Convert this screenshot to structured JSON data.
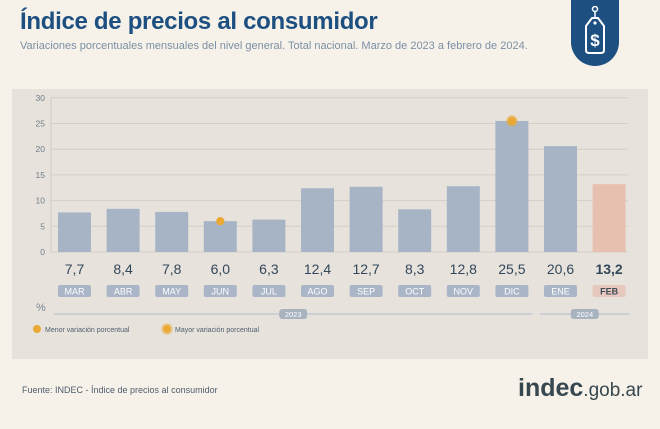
{
  "header": {
    "title": "Índice de precios al consumidor",
    "subtitle": "Variaciones porcentuales mensuales del nivel general. Total nacional. Marzo de 2023 a febrero de 2024.",
    "badge_icon": "price-tag-dollar-icon"
  },
  "chart_data": {
    "type": "bar",
    "categories": [
      "MAR",
      "ABR",
      "MAY",
      "JUN",
      "JUL",
      "AGO",
      "SEP",
      "OCT",
      "NOV",
      "DIC",
      "ENE",
      "FEB"
    ],
    "values": [
      7.7,
      8.4,
      7.8,
      6.0,
      6.3,
      12.4,
      12.7,
      8.3,
      12.8,
      25.5,
      20.6,
      13.2
    ],
    "value_labels": [
      "7,7",
      "8,4",
      "7,8",
      "6,0",
      "6,3",
      "12,4",
      "12,7",
      "8,3",
      "12,8",
      "25,5",
      "20,6",
      "13,2"
    ],
    "ylabel": "%",
    "ylim": [
      0,
      30
    ],
    "yticks": [
      0,
      5,
      10,
      15,
      20,
      25,
      30
    ],
    "grid": true,
    "year_groups": [
      {
        "label": "2023",
        "start": 0,
        "end": 9
      },
      {
        "label": "2024",
        "start": 10,
        "end": 11
      }
    ],
    "highlight_index": 11,
    "markers": {
      "min": {
        "index": 3,
        "label": "Menor variación porcentual"
      },
      "max": {
        "index": 9,
        "label": "Mayor variación porcentual"
      }
    },
    "colors": {
      "bar": "#a7b4c6",
      "bar_highlight": "#e7c0b0",
      "label_box": "#aab6c7",
      "label_box_highlight": "#e6c8be",
      "marker": "#e9a934",
      "year_line": "#c2c9d1"
    }
  },
  "footer": {
    "source": "Fuente: INDEC - Índice de precios al consumidor",
    "brand_main": "indec",
    "brand_suffix": ".gob.ar"
  }
}
